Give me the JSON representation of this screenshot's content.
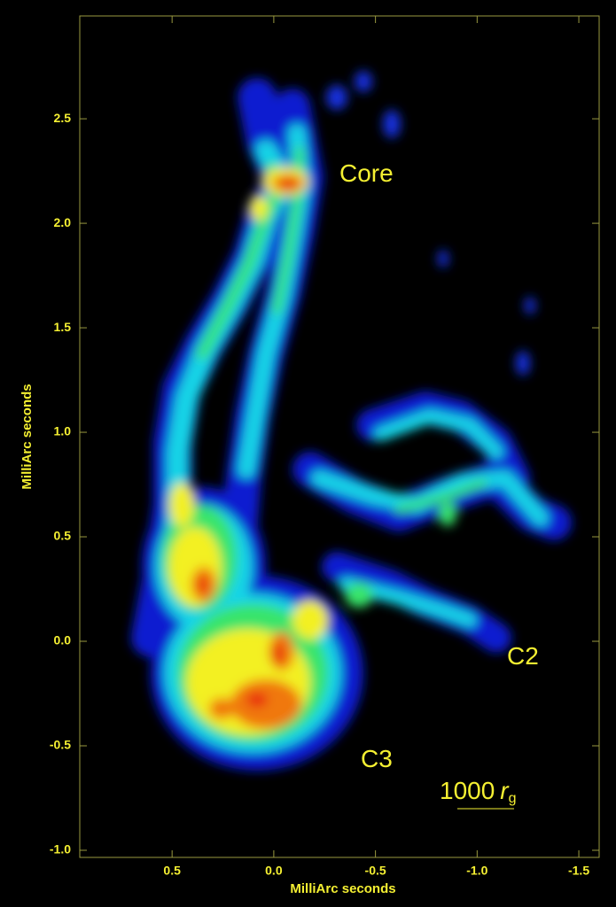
{
  "chart_data": {
    "type": "image",
    "xlabel": "MilliArc seconds",
    "ylabel": "MilliArc seconds",
    "xlim": [
      0.954,
      -1.6
    ],
    "ylim": [
      -1.034,
      2.992
    ],
    "xticks": [
      0.5,
      {
        "value": 0,
        "label": "0.0"
      },
      -0.5,
      {
        "value": -1,
        "label": "-1.0"
      },
      -1.5
    ],
    "yticks": [
      {
        "value": -1,
        "label": "-1.0"
      },
      -0.5,
      {
        "value": 0,
        "label": "0.0"
      },
      0.5,
      {
        "value": 1,
        "label": "1.0"
      },
      1.5,
      {
        "value": 2,
        "label": "2.0"
      },
      2.5
    ],
    "annotations": [
      "Core",
      "C2",
      "C3"
    ],
    "scale_bar": {
      "number": "1000",
      "symbol": "r",
      "subscript": "g"
    }
  }
}
